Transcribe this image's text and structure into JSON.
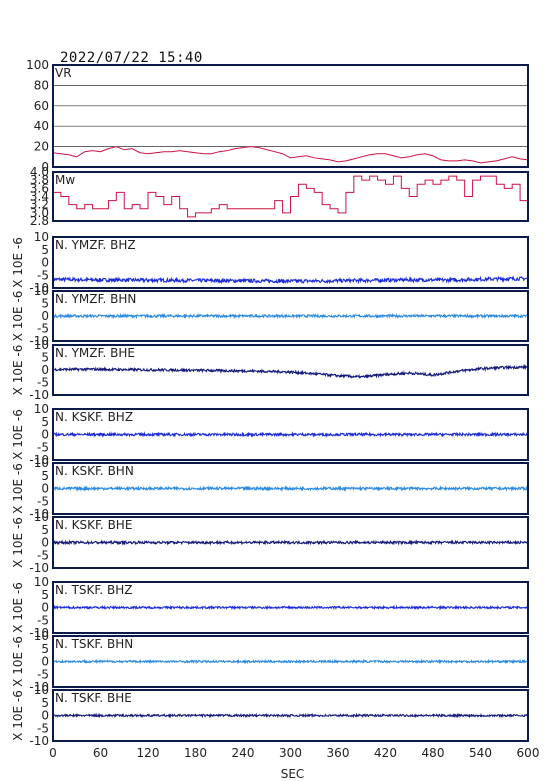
{
  "header": {
    "timestamp": "2022/07/22  15:40"
  },
  "colors": {
    "frame": "#0b1a4a",
    "vr_mw": "#cc1244",
    "bhz": "#1a2ad8",
    "bhn": "#2a8ae0",
    "bhe": "#141a7a"
  },
  "chart_data": [
    {
      "type": "line",
      "name": "VR",
      "label": "VR",
      "ylim": [
        0,
        100
      ],
      "yticks": [
        "100",
        "80",
        "60",
        "40",
        "20",
        "0"
      ],
      "grid": true,
      "x": [
        0,
        10,
        20,
        30,
        40,
        50,
        60,
        70,
        80,
        90,
        100,
        110,
        120,
        130,
        140,
        150,
        160,
        170,
        180,
        190,
        200,
        210,
        220,
        230,
        240,
        250,
        260,
        270,
        280,
        290,
        300,
        310,
        320,
        330,
        340,
        350,
        360,
        370,
        380,
        390,
        400,
        410,
        420,
        430,
        440,
        450,
        460,
        470,
        480,
        490,
        500,
        510,
        520,
        530,
        540,
        550,
        560,
        570,
        580,
        590,
        600
      ],
      "values": [
        14,
        13,
        12,
        10,
        15,
        16,
        15,
        18,
        20,
        17,
        18,
        14,
        13,
        14,
        15,
        15,
        16,
        15,
        14,
        13,
        13,
        15,
        16,
        18,
        19,
        20,
        19,
        17,
        15,
        13,
        9,
        10,
        11,
        9,
        8,
        7,
        5,
        6,
        8,
        10,
        12,
        13,
        13,
        11,
        9,
        10,
        12,
        13,
        11,
        7,
        6,
        6,
        7,
        6,
        4,
        5,
        6,
        8,
        10,
        8,
        7
      ]
    },
    {
      "type": "line",
      "name": "Mw",
      "label": "Mw",
      "ylim": [
        2.8,
        4.0
      ],
      "yticks": [
        "4.0",
        "3.8",
        "3.6",
        "3.4",
        "3.2",
        "3.0",
        "2.8"
      ],
      "x": [
        0,
        10,
        20,
        30,
        40,
        50,
        60,
        70,
        80,
        90,
        100,
        110,
        120,
        130,
        140,
        150,
        160,
        170,
        180,
        190,
        200,
        210,
        220,
        230,
        240,
        250,
        260,
        270,
        280,
        290,
        300,
        310,
        320,
        330,
        340,
        350,
        360,
        370,
        380,
        390,
        400,
        410,
        420,
        430,
        440,
        450,
        460,
        470,
        480,
        490,
        500,
        510,
        520,
        530,
        540,
        550,
        560,
        570,
        580,
        590,
        600
      ],
      "values": [
        3.5,
        3.4,
        3.2,
        3.1,
        3.2,
        3.1,
        3.1,
        3.3,
        3.5,
        3.1,
        3.2,
        3.1,
        3.5,
        3.4,
        3.2,
        3.4,
        3.1,
        2.9,
        3.0,
        3.0,
        3.1,
        3.2,
        3.1,
        3.1,
        3.1,
        3.1,
        3.1,
        3.1,
        3.3,
        3.0,
        3.4,
        3.7,
        3.6,
        3.5,
        3.2,
        3.1,
        3.0,
        3.5,
        3.9,
        3.8,
        3.9,
        3.8,
        3.7,
        3.9,
        3.6,
        3.4,
        3.7,
        3.8,
        3.7,
        3.8,
        3.9,
        3.8,
        3.4,
        3.8,
        3.9,
        3.9,
        3.7,
        3.6,
        3.7,
        3.3,
        3.8
      ]
    },
    {
      "type": "line",
      "name": "N.YMZF.BHZ",
      "label": "N. YMZF. BHZ",
      "ylim": [
        -10,
        10
      ],
      "yticks": [
        "10",
        "5",
        "0",
        "-5",
        "-10"
      ],
      "x": [
        0,
        50,
        100,
        150,
        200,
        250,
        300,
        350,
        400,
        450,
        500,
        550,
        600
      ],
      "values": [
        -6.6,
        -6.8,
        -6.9,
        -7.0,
        -7.1,
        -7.2,
        -7.3,
        -7.2,
        -7.0,
        -6.8,
        -6.9,
        -6.5,
        -6.3
      ],
      "noise": 0.7
    },
    {
      "type": "line",
      "name": "N.YMZF.BHN",
      "label": "N. YMZF. BHN",
      "ylim": [
        -10,
        10
      ],
      "yticks": [
        "10",
        "5",
        "0",
        "-5",
        "-10"
      ],
      "x": [
        0,
        100,
        200,
        300,
        400,
        500,
        600
      ],
      "values": [
        0,
        0,
        0,
        0,
        0,
        0,
        0
      ],
      "noise": 0.5
    },
    {
      "type": "line",
      "name": "N.YMZF.BHE",
      "label": "N. YMZF. BHE",
      "ylim": [
        -10,
        10
      ],
      "yticks": [
        "10",
        "5",
        "0",
        "-5",
        "-10"
      ],
      "x": [
        0,
        50,
        100,
        150,
        200,
        250,
        300,
        330,
        360,
        390,
        420,
        450,
        480,
        510,
        540,
        570,
        600
      ],
      "values": [
        0.2,
        0.3,
        0.1,
        0.0,
        -0.2,
        -0.4,
        -0.8,
        -1.5,
        -2.3,
        -2.8,
        -1.8,
        -1.2,
        -2.0,
        -0.5,
        0.5,
        1.0,
        1.2
      ],
      "noise": 0.5
    },
    {
      "type": "line",
      "name": "N.KSKF.BHZ",
      "label": "N. KSKF. BHZ",
      "ylim": [
        -10,
        10
      ],
      "yticks": [
        "10",
        "5",
        "0",
        "-5",
        "-10"
      ],
      "x": [
        0,
        100,
        200,
        300,
        400,
        500,
        600
      ],
      "values": [
        0,
        0,
        0,
        0,
        0,
        0,
        0
      ],
      "noise": 0.5
    },
    {
      "type": "line",
      "name": "N.KSKF.BHN",
      "label": "N. KSKF. BHN",
      "ylim": [
        -10,
        10
      ],
      "yticks": [
        "10",
        "5",
        "0",
        "-5",
        "-10"
      ],
      "x": [
        0,
        100,
        200,
        300,
        400,
        500,
        600
      ],
      "values": [
        0,
        0,
        0,
        0,
        0,
        0,
        0
      ],
      "noise": 0.5
    },
    {
      "type": "line",
      "name": "N.KSKF.BHE",
      "label": "N. KSKF. BHE",
      "ylim": [
        -10,
        10
      ],
      "yticks": [
        "10",
        "5",
        "0",
        "-5",
        "-10"
      ],
      "x": [
        0,
        100,
        200,
        300,
        400,
        500,
        600
      ],
      "values": [
        0,
        0,
        0,
        0,
        0,
        0,
        0
      ],
      "noise": 0.5
    },
    {
      "type": "line",
      "name": "N.TSKF.BHZ",
      "label": "N. TSKF. BHZ",
      "ylim": [
        -10,
        10
      ],
      "yticks": [
        "10",
        "5",
        "0",
        "-5",
        "-10"
      ],
      "x": [
        0,
        100,
        200,
        300,
        400,
        500,
        600
      ],
      "values": [
        0,
        0,
        0,
        0,
        0,
        0,
        0
      ],
      "noise": 0.4
    },
    {
      "type": "line",
      "name": "N.TSKF.BHN",
      "label": "N. TSKF. BHN",
      "ylim": [
        -10,
        10
      ],
      "yticks": [
        "10",
        "5",
        "0",
        "-5",
        "-10"
      ],
      "x": [
        0,
        100,
        200,
        300,
        400,
        500,
        600
      ],
      "values": [
        0,
        0,
        0,
        0,
        0,
        0,
        0
      ],
      "noise": 0.4
    },
    {
      "type": "line",
      "name": "N.TSKF.BHE",
      "label": "N. TSKF. BHE",
      "ylim": [
        -10,
        10
      ],
      "yticks": [
        "10",
        "5",
        "0",
        "-5",
        "-10"
      ],
      "x": [
        0,
        100,
        200,
        300,
        400,
        500,
        600
      ],
      "values": [
        0,
        0,
        0,
        0,
        0,
        0,
        0
      ],
      "noise": 0.4
    }
  ],
  "axes": {
    "unit_label": "X 10E -6",
    "xlabel": "SEC",
    "xlim": [
      0,
      600
    ],
    "xticks": [
      "0",
      "60",
      "120",
      "180",
      "240",
      "300",
      "360",
      "420",
      "480",
      "540",
      "600"
    ]
  }
}
